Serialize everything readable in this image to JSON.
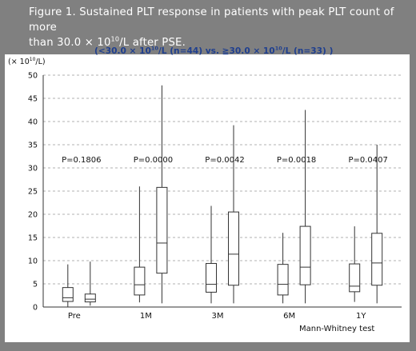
{
  "caption": {
    "line1": "Figure 1. Sustained PLT response in patients with peak PLT count of more",
    "line2_pre": "than 30.0 × 10",
    "line2_sup": "10",
    "line2_post": "/L after PSE."
  },
  "subtitle": {
    "part1": "(<30.0 × 10",
    "sup1": "10",
    "part2": "/L (n=44) vs. ≧30.0 × 10",
    "sup2": "10",
    "part3": "/L (n=33) )"
  },
  "y_unit": {
    "pre": "(× 10",
    "sup": "10",
    "post": "/L)"
  },
  "footnote": "Mann-Whitney test",
  "colors": {
    "background": "#808080",
    "panel": "#ffffff",
    "caption_text": "#ffffff",
    "subtitle_text": "#1f3f8f",
    "box_stroke": "#333333",
    "box_fill": "#ffffff",
    "grid": "#999999"
  },
  "chart_data": {
    "type": "box",
    "categories": [
      "Pre",
      "1M",
      "3M",
      "6M",
      "1Y"
    ],
    "p_values": [
      "P=0.1806",
      "P=0.0000",
      "P=0.0042",
      "P=0.0018",
      "P=0.0407"
    ],
    "ylim": [
      0,
      50
    ],
    "yticks": [
      0,
      5,
      10,
      15,
      20,
      25,
      30,
      35,
      40,
      45,
      50
    ],
    "grid": "horizontal dashed",
    "series": [
      {
        "boxes": [
          {
            "min": 0,
            "q1": 1.2,
            "median": 2.0,
            "q3": 4.2,
            "max": 9.2
          },
          {
            "min": 1.0,
            "q1": 2.6,
            "median": 4.8,
            "q3": 8.6,
            "max": 26.0
          },
          {
            "min": 0.8,
            "q1": 3.2,
            "median": 4.9,
            "q3": 9.4,
            "max": 21.8
          },
          {
            "min": 0.8,
            "q1": 2.6,
            "median": 4.9,
            "q3": 9.2,
            "max": 16.0
          },
          {
            "min": 1.1,
            "q1": 3.3,
            "median": 4.5,
            "q3": 9.3,
            "max": 17.4
          }
        ]
      },
      {
        "boxes": [
          {
            "min": 0.3,
            "q1": 1.1,
            "median": 1.7,
            "q3": 2.8,
            "max": 9.8
          },
          {
            "min": 0.8,
            "q1": 7.3,
            "median": 13.8,
            "q3": 25.8,
            "max": 47.8
          },
          {
            "min": 0.8,
            "q1": 4.7,
            "median": 11.4,
            "q3": 20.5,
            "max": 39.2
          },
          {
            "min": 0.8,
            "q1": 4.8,
            "median": 8.6,
            "q3": 17.4,
            "max": 42.5
          },
          {
            "min": 0.8,
            "q1": 4.7,
            "median": 9.5,
            "q3": 15.9,
            "max": 35.0
          }
        ]
      }
    ]
  }
}
